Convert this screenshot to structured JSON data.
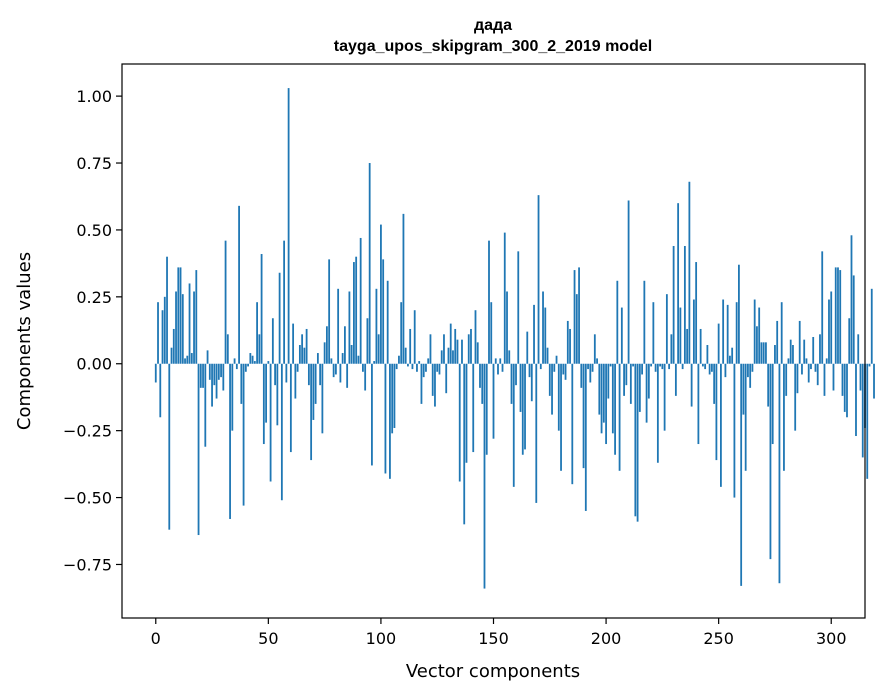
{
  "chart_data": {
    "type": "bar",
    "title_lines": [
      "дада",
      "tayga_upos_skipgram_300_2_2019 model"
    ],
    "xlabel": "Vector components",
    "ylabel": "Components values",
    "xlim": [
      -15,
      315
    ],
    "ylim": [
      -0.95,
      1.12
    ],
    "xticks": [
      0,
      50,
      100,
      150,
      200,
      250,
      300
    ],
    "yticks": [
      -0.75,
      -0.5,
      -0.25,
      0.0,
      0.25,
      0.5,
      0.75,
      1.0
    ],
    "ytick_labels": [
      "−0.75",
      "−0.50",
      "−0.25",
      "0.00",
      "0.25",
      "0.50",
      "0.75",
      "1.00"
    ],
    "bar_color": "#1f77b4",
    "grid": false,
    "values": [
      -0.07,
      0.23,
      -0.2,
      0.2,
      0.25,
      0.4,
      -0.62,
      0.06,
      0.13,
      0.27,
      0.36,
      0.36,
      0.26,
      0.02,
      0.03,
      0.3,
      0.04,
      0.27,
      0.35,
      -0.64,
      -0.09,
      -0.09,
      -0.31,
      0.05,
      -0.06,
      -0.16,
      -0.08,
      -0.13,
      -0.06,
      -0.05,
      -0.1,
      0.46,
      0.11,
      -0.58,
      -0.25,
      0.02,
      -0.02,
      0.59,
      -0.15,
      -0.53,
      -0.03,
      -0.01,
      0.04,
      0.03,
      0.01,
      0.23,
      0.11,
      0.41,
      -0.3,
      -0.22,
      0.01,
      -0.44,
      0.17,
      -0.08,
      -0.23,
      0.34,
      -0.51,
      0.46,
      -0.07,
      1.03,
      -0.33,
      0.15,
      -0.13,
      -0.03,
      0.07,
      0.11,
      0.06,
      0.13,
      -0.08,
      -0.36,
      -0.21,
      -0.15,
      0.04,
      -0.08,
      -0.26,
      0.08,
      0.14,
      0.39,
      0.02,
      -0.05,
      -0.04,
      0.28,
      -0.07,
      0.04,
      0.14,
      -0.09,
      0.27,
      0.07,
      0.38,
      0.4,
      0.03,
      0.47,
      -0.03,
      -0.1,
      0.17,
      0.75,
      -0.38,
      0.01,
      0.28,
      0.11,
      0.52,
      0.39,
      -0.41,
      0.31,
      -0.43,
      -0.26,
      -0.24,
      -0.02,
      0.03,
      0.23,
      0.56,
      0.06,
      -0.01,
      0.13,
      -0.02,
      0.2,
      -0.03,
      0.01,
      -0.15,
      -0.05,
      -0.03,
      0.02,
      0.11,
      -0.12,
      -0.16,
      -0.03,
      -0.04,
      0.05,
      0.11,
      -0.11,
      0.06,
      0.15,
      0.05,
      0.13,
      0.09,
      -0.44,
      0.09,
      -0.6,
      -0.37,
      0.11,
      0.13,
      -0.33,
      0.2,
      0.08,
      -0.09,
      -0.15,
      -0.84,
      -0.34,
      0.46,
      0.23,
      -0.28,
      0.02,
      -0.04,
      0.02,
      -0.03,
      0.49,
      0.27,
      0.05,
      -0.15,
      -0.46,
      -0.08,
      0.42,
      -0.18,
      -0.34,
      -0.32,
      0.12,
      -0.05,
      -0.14,
      0.22,
      -0.52,
      0.63,
      -0.02,
      0.27,
      0.21,
      0.06,
      -0.12,
      -0.19,
      -0.03,
      0.03,
      -0.25,
      -0.4,
      -0.04,
      -0.06,
      0.16,
      0.13,
      -0.45,
      0.35,
      0.26,
      0.36,
      -0.09,
      -0.39,
      -0.55,
      -0.02,
      -0.07,
      -0.03,
      0.11,
      0.02,
      -0.19,
      -0.26,
      -0.22,
      -0.3,
      -0.13,
      -0.01,
      -0.26,
      -0.34,
      0.31,
      -0.4,
      0.21,
      -0.12,
      -0.08,
      0.61,
      -0.15,
      -0.01,
      -0.57,
      -0.59,
      -0.18,
      -0.04,
      0.31,
      -0.22,
      -0.13,
      -0.01,
      0.23,
      -0.03,
      -0.37,
      -0.01,
      -0.02,
      -0.25,
      0.26,
      -0.02,
      0.11,
      0.44,
      -0.12,
      0.6,
      0.21,
      -0.02,
      0.44,
      0.13,
      0.68,
      -0.16,
      0.24,
      0.38,
      -0.3,
      0.13,
      -0.01,
      -0.02,
      0.07,
      -0.04,
      -0.03,
      -0.15,
      -0.36,
      0.15,
      -0.46,
      0.24,
      -0.05,
      0.22,
      0.03,
      0.06,
      -0.5,
      0.23,
      0.37,
      -0.83,
      -0.19,
      -0.4,
      -0.05,
      -0.09,
      -0.03,
      0.24,
      0.14,
      0.21,
      0.08,
      0.08,
      0.08,
      -0.16,
      -0.73,
      -0.3,
      0.07,
      0.16,
      -0.82,
      0.23,
      -0.4,
      -0.12,
      0.02,
      0.09,
      0.07,
      -0.25,
      -0.11,
      0.16,
      -0.04,
      0.09,
      0.02,
      -0.07,
      -0.02,
      0.1,
      -0.03,
      -0.08,
      0.11,
      0.42,
      -0.12,
      0.02,
      0.24,
      0.27,
      -0.1,
      0.36,
      0.36,
      0.35,
      -0.12,
      -0.18,
      -0.2,
      0.17,
      0.48,
      0.33,
      -0.27,
      0.11,
      -0.1,
      -0.35,
      -0.24,
      -0.43,
      -0.01,
      0.28,
      -0.13
    ]
  }
}
